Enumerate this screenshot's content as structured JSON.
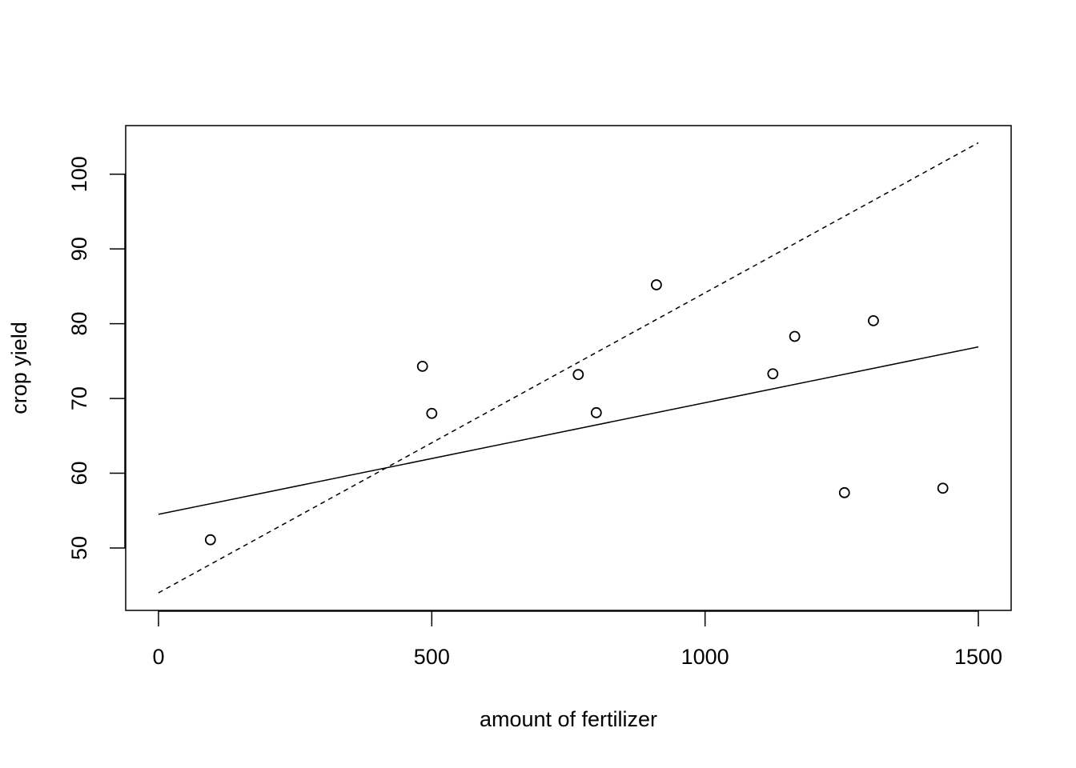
{
  "chart_data": {
    "type": "scatter",
    "x_label": "amount of fertilizer",
    "y_label": "crop yield",
    "x": [
      95,
      483,
      500,
      768,
      801,
      911,
      1124,
      1164,
      1255,
      1308,
      1435
    ],
    "values": [
      51.1,
      74.3,
      68.0,
      73.2,
      68.1,
      85.2,
      73.3,
      78.3,
      57.4,
      80.4,
      58.0
    ],
    "color": "#000000",
    "lines": [
      {
        "x": [
          0,
          1500
        ],
        "values": [
          54.5,
          76.9
        ],
        "linestyle": "solid"
      },
      {
        "x": [
          0,
          1500
        ],
        "values": [
          44.0,
          104.2
        ],
        "linestyle": "dashed"
      }
    ],
    "xlim": [
      -60,
      1560
    ],
    "ylim": [
      41.65,
      106.5
    ],
    "xticks": [
      0,
      500,
      1000,
      1500
    ],
    "yticks": [
      50,
      60,
      70,
      80,
      90,
      100
    ],
    "grid": false
  }
}
